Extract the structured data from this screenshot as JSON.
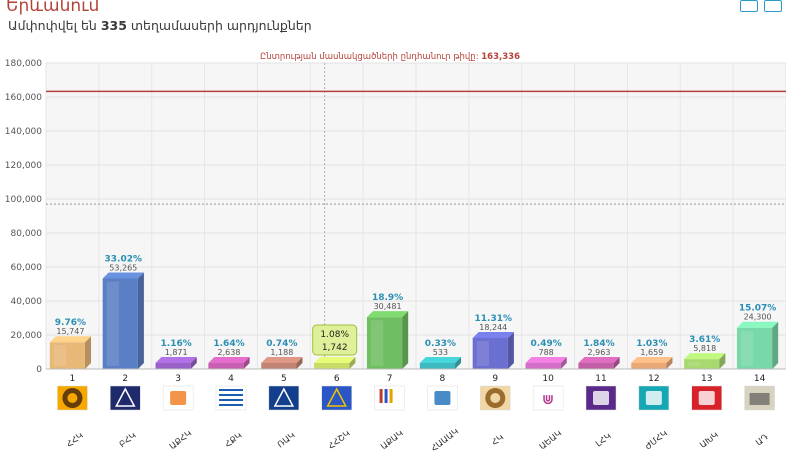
{
  "header": {
    "title": "Երևանում",
    "subtitle_prefix": "Ամփոփվել են",
    "subtitle_count": "335",
    "subtitle_suffix": "տեղամասերի արդյունքներ"
  },
  "colors": {
    "threshold_line": "#b5423a",
    "tooltip_bg": "#dff09a"
  },
  "chart_data": {
    "type": "bar",
    "title": "",
    "xlabel": "",
    "ylabel": "",
    "ylim": [
      0,
      180000
    ],
    "yticks": [
      "0",
      "20,000",
      "40,000",
      "60,000",
      "80,000",
      "100,000",
      "120,000",
      "140,000",
      "160,000",
      "180,000"
    ],
    "threshold": {
      "label_prefix": "Ընտրության մասնակցածների ընդհանուր թիվը:",
      "label_value": "163,336",
      "value": 163336
    },
    "reference_line": 97000,
    "grid": true,
    "categories": [
      "1",
      "2",
      "3",
      "4",
      "5",
      "6",
      "7",
      "8",
      "9",
      "10",
      "11",
      "12",
      "13",
      "14"
    ],
    "parties": [
      "ՀՀԿ",
      "ԲՀԿ",
      "ԱՔՀԿ",
      "ՀՔԿ",
      "ՌԱԿ",
      "ՀՀՇԿ",
      "ԱՔԱԿ",
      "ՀԱԱԱԿ",
      "ՀԿ",
      "ԱԵԱԿ",
      "ԼՀԿ",
      "ԺՄՀԿ",
      "ԱԽԿ",
      "ԱԴ"
    ],
    "values": [
      15747,
      53265,
      1871,
      2638,
      1188,
      1742,
      30481,
      533,
      18244,
      788,
      2963,
      1659,
      5818,
      24300
    ],
    "labels_count": [
      "15,747",
      "53,265",
      "1,871",
      "2,638",
      "1,188",
      "1,742",
      "30,481",
      "533",
      "18,244",
      "788",
      "2,963",
      "1,659",
      "5,818",
      "24,300"
    ],
    "labels_pct": [
      "9.76%",
      "33.02%",
      "1.16%",
      "1.64%",
      "0.74%",
      "1.08%",
      "18.9%",
      "0.33%",
      "11.31%",
      "0.49%",
      "1.84%",
      "1.03%",
      "3.61%",
      "15.07%"
    ],
    "colors": [
      "#e8b878",
      "#5b7fc4",
      "#9a62c9",
      "#c85fb2",
      "#c28474",
      "#c9dc6a",
      "#6fbf62",
      "#3fbac0",
      "#6b6fd0",
      "#d46fc8",
      "#c25fa7",
      "#e8a878",
      "#a8d870",
      "#78d8a8"
    ],
    "tooltip_index": 5,
    "logos": [
      {
        "icon": "seal-icon",
        "bg": "#f6a800",
        "fg": "#4b2a0a"
      },
      {
        "icon": "shield-logo-icon",
        "bg": "#1e2a6b",
        "fg": "#ffffff"
      },
      {
        "icon": "arrow-logo-icon",
        "bg": "#ffffff",
        "fg": "#f07a1c"
      },
      {
        "icon": "stripes-logo-icon",
        "bg": "#ffffff",
        "fg": "#1a5fb4"
      },
      {
        "icon": "bird-logo-icon",
        "bg": "#123e8c",
        "fg": "#ffffff"
      },
      {
        "icon": "eu-stars-logo-icon",
        "bg": "#2a56c6",
        "fg": "#f2c200"
      },
      {
        "icon": "bars-logo-icon",
        "bg": "#ffffff",
        "fg": "#c0392b"
      },
      {
        "icon": "dome-logo-icon",
        "bg": "#ffffff",
        "fg": "#1a6eb8"
      },
      {
        "icon": "knot-logo-icon",
        "bg": "#f1d7a6",
        "fg": "#8b5a1a"
      },
      {
        "icon": "ur-logo-icon",
        "bg": "#ffffff",
        "fg": "#b33b8f"
      },
      {
        "icon": "square-logo-icon",
        "bg": "#5a2a8a",
        "fg": "#ffffff"
      },
      {
        "icon": "teal-logo-icon",
        "bg": "#16a7b4",
        "fg": "#ffffff"
      },
      {
        "icon": "red-logo-icon",
        "bg": "#d8222a",
        "fg": "#ffffff"
      },
      {
        "icon": "temple-logo-icon",
        "bg": "#d8d2c0",
        "fg": "#4a4a4a"
      }
    ]
  }
}
